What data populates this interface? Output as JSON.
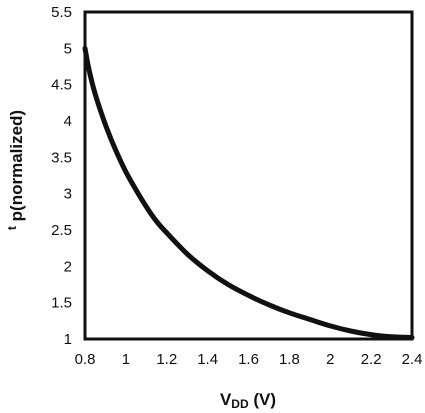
{
  "chart_data": {
    "type": "line",
    "title": "",
    "xlabel": {
      "main": "V",
      "subscript": "DD",
      "suffix": " (V)"
    },
    "ylabel": {
      "superscript": "t",
      "main": " p(normalized)"
    },
    "xlim": [
      0.8,
      2.4
    ],
    "ylim": [
      1,
      5.5
    ],
    "x_ticks": [
      0.8,
      1,
      1.2,
      1.4,
      1.6,
      1.8,
      2,
      2.2,
      2.4
    ],
    "x_tick_labels": [
      "0.8",
      "1",
      "1.2",
      "1.4",
      "1.6",
      "1.8",
      "2",
      "2.2",
      "2.4"
    ],
    "y_ticks": [
      1,
      1.5,
      2,
      2.5,
      3,
      3.5,
      4,
      4.5,
      5,
      5.5
    ],
    "y_tick_labels": [
      "1",
      "1.5",
      "2",
      "2.5",
      "3",
      "3.5",
      "4",
      "4.5",
      "5",
      "5.5"
    ],
    "grid": false,
    "legend": "none",
    "series": [
      {
        "color": "#111111",
        "x": [
          0.8,
          0.82,
          0.85,
          0.9,
          0.95,
          1.0,
          1.05,
          1.1,
          1.15,
          1.2,
          1.3,
          1.4,
          1.5,
          1.6,
          1.7,
          1.8,
          1.9,
          2.0,
          2.1,
          2.2,
          2.3,
          2.4
        ],
        "y": [
          5.0,
          4.7,
          4.37,
          3.95,
          3.6,
          3.3,
          3.05,
          2.82,
          2.62,
          2.46,
          2.17,
          1.94,
          1.75,
          1.6,
          1.47,
          1.36,
          1.27,
          1.18,
          1.11,
          1.06,
          1.03,
          1.02
        ]
      }
    ]
  }
}
